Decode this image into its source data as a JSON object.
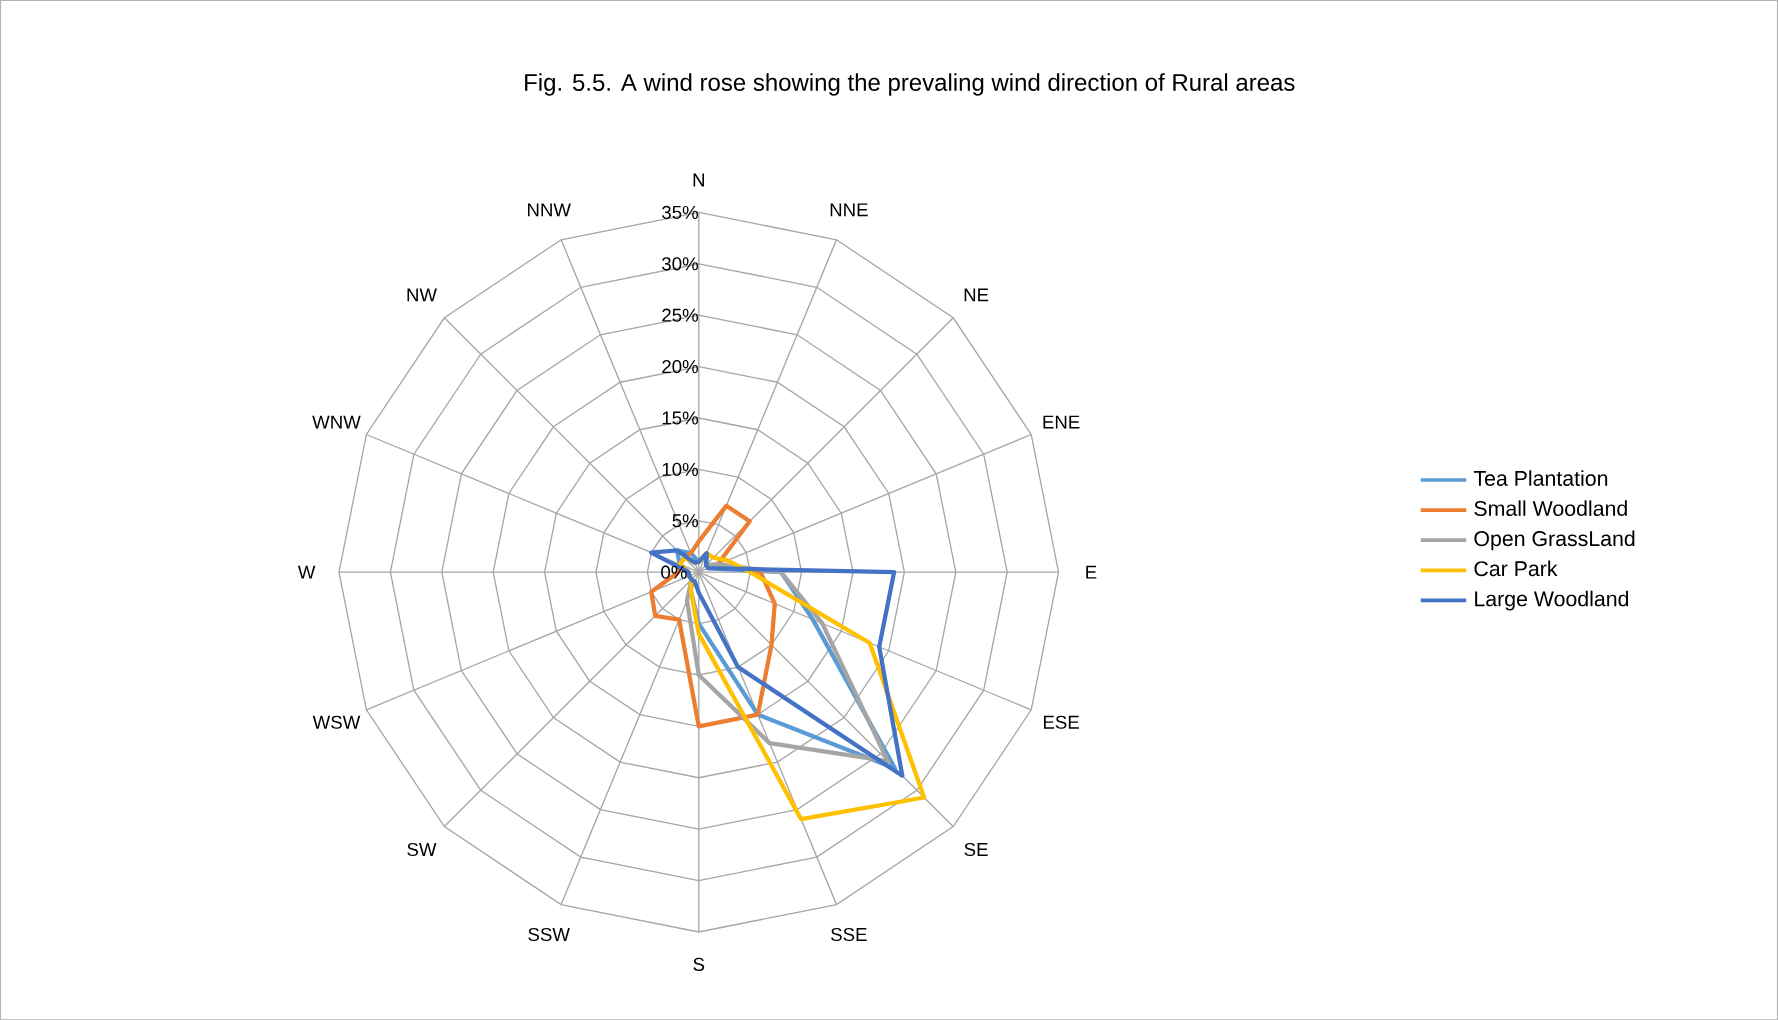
{
  "chart_data": {
    "type": "radar",
    "title": "Fig. 5.5. A wind rose showing the prevaling wind direction of Rural areas",
    "categories": [
      "N",
      "NNE",
      "NE",
      "ENE",
      "E",
      "ESE",
      "SE",
      "SSE",
      "S",
      "SSW",
      "SW",
      "WSW",
      "W",
      "WNW",
      "NW",
      "NNW"
    ],
    "series": [
      {
        "name": "Tea Plantation",
        "color": "#5b9bd5",
        "values": [
          1,
          2,
          1,
          1,
          8,
          12,
          27,
          15,
          5,
          2,
          1,
          1,
          1,
          2,
          3,
          2
        ]
      },
      {
        "name": "Small Woodland",
        "color": "#ed7d31",
        "values": [
          3,
          7,
          7,
          2,
          6,
          8,
          10,
          15,
          15,
          5,
          6,
          5,
          2,
          2,
          2,
          2
        ]
      },
      {
        "name": "Open GrassLand",
        "color": "#a5a5a5",
        "values": [
          1,
          2,
          1,
          2,
          8,
          13,
          26,
          18,
          10,
          3,
          1,
          1,
          1,
          2,
          2,
          1
        ]
      },
      {
        "name": "Car Park",
        "color": "#ffc000",
        "values": [
          1,
          2,
          2,
          3,
          5,
          18,
          31,
          26,
          6,
          2,
          1,
          1,
          1,
          2,
          2,
          1
        ]
      },
      {
        "name": "Large Woodland",
        "color": "#4472c4",
        "values": [
          1,
          2,
          1,
          1,
          19,
          19,
          28,
          10,
          2,
          1,
          1,
          1,
          1,
          5,
          3,
          1
        ]
      }
    ],
    "ylim": [
      0,
      35
    ],
    "yticks": [
      {
        "value": 0,
        "label": "0%"
      },
      {
        "value": 5,
        "label": "5%"
      },
      {
        "value": 10,
        "label": "10%"
      },
      {
        "value": 15,
        "label": "15%"
      },
      {
        "value": 20,
        "label": "20%"
      },
      {
        "value": 25,
        "label": "25%"
      },
      {
        "value": 30,
        "label": "30%"
      },
      {
        "value": 35,
        "label": "35%"
      }
    ],
    "grid": true,
    "legend": "right"
  }
}
